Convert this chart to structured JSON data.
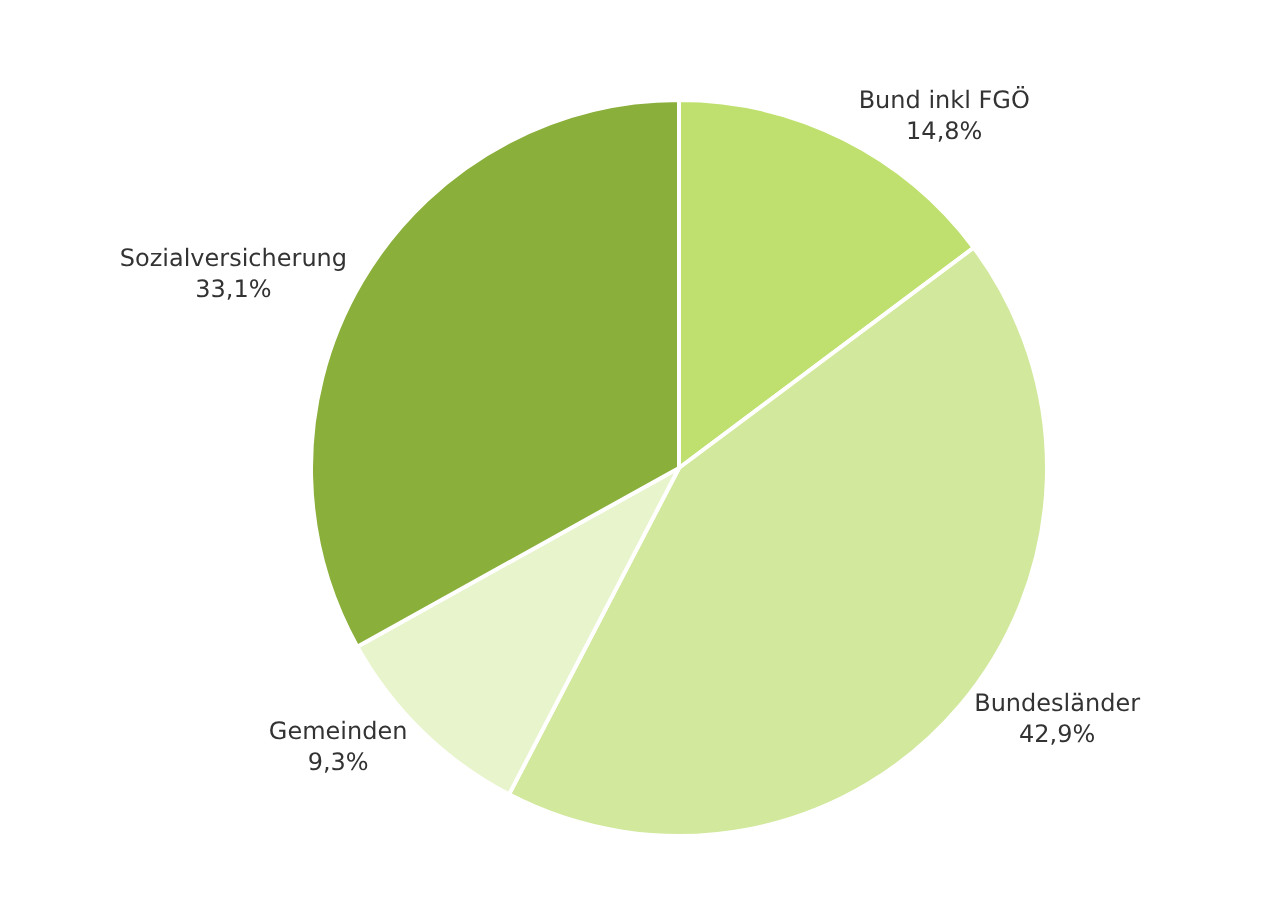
{
  "chart_data": {
    "type": "pie",
    "categories": [
      "Bund inkl FGÖ",
      "Bundesländer",
      "Gemeinden",
      "Sozialversicherung"
    ],
    "values": [
      14.8,
      42.9,
      9.3,
      33.1
    ],
    "value_labels": [
      "14,8%",
      "42,9%",
      "9,3%",
      "33,1%"
    ],
    "colors": [
      "#bfe06e",
      "#d2e89c",
      "#e8f4cc",
      "#8aaf3a"
    ],
    "legend": false
  }
}
